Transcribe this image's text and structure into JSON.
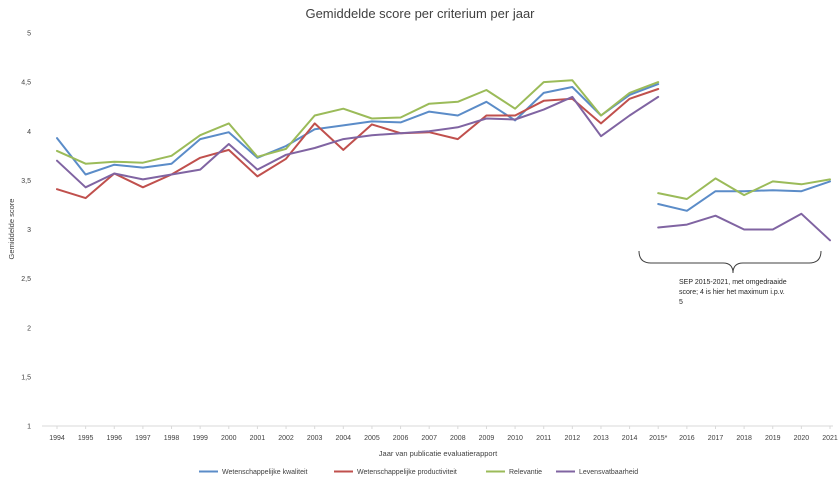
{
  "chart_data": {
    "type": "line",
    "title": "Gemiddelde score per criterium per jaar",
    "xlabel": "Jaar van publicatie evaluatierapport",
    "ylabel": "Gemiddelde score",
    "ylim": [
      1,
      5
    ],
    "yticks": [
      "1",
      "1,5",
      "2",
      "2,5",
      "3",
      "3,5",
      "4",
      "4,5",
      "5"
    ],
    "grid": false,
    "legend_position": "bottom",
    "categories": [
      "1994",
      "1995",
      "1996",
      "1997",
      "1998",
      "1999",
      "2000",
      "2001",
      "2002",
      "2003",
      "2004",
      "2005",
      "2006",
      "2007",
      "2008",
      "2009",
      "2010",
      "2011",
      "2012",
      "2013",
      "2014",
      "2015*",
      "2016",
      "2017",
      "2018",
      "2019",
      "2020",
      "2021"
    ],
    "series": [
      {
        "name": "Wetenschappelijke kwaliteit",
        "color": "#5b8cc8",
        "segments": [
          {
            "from": 0,
            "values": [
              3.93,
              3.56,
              3.66,
              3.63,
              3.67,
              3.92,
              3.99,
              3.73,
              3.85,
              4.02,
              4.06,
              4.1,
              4.09,
              4.2,
              4.16,
              4.3,
              4.11,
              4.39,
              4.45,
              4.16,
              4.37,
              4.48
            ]
          },
          {
            "from": 21,
            "values": [
              3.26,
              3.19,
              3.39,
              3.39,
              3.4,
              3.39,
              3.49
            ]
          }
        ]
      },
      {
        "name": "Wetenschappelijke productiviteit",
        "color": "#c0504d",
        "segments": [
          {
            "from": 0,
            "values": [
              3.41,
              3.32,
              3.57,
              3.43,
              3.56,
              3.73,
              3.81,
              3.54,
              3.72,
              4.08,
              3.81,
              4.07,
              3.98,
              3.99,
              3.92,
              4.16,
              4.16,
              4.31,
              4.33,
              4.08,
              4.33,
              4.43
            ]
          }
        ]
      },
      {
        "name": "Relevantie",
        "color": "#9bbb59",
        "segments": [
          {
            "from": 0,
            "values": [
              3.8,
              3.67,
              3.69,
              3.68,
              3.75,
              3.96,
              4.08,
              3.74,
              3.82,
              4.16,
              4.23,
              4.13,
              4.14,
              4.28,
              4.3,
              4.42,
              4.23,
              4.5,
              4.52,
              4.16,
              4.39,
              4.5
            ]
          },
          {
            "from": 21,
            "values": [
              3.37,
              3.31,
              3.52,
              3.35,
              3.49,
              3.46,
              3.51
            ]
          }
        ]
      },
      {
        "name": "Levensvatbaarheid",
        "color": "#8064a2",
        "segments": [
          {
            "from": 0,
            "values": [
              3.7,
              3.43,
              3.57,
              3.51,
              3.56,
              3.61,
              3.87,
              3.61,
              3.76,
              3.83,
              3.92,
              3.96,
              3.98,
              4.0,
              4.04,
              4.13,
              4.12,
              4.22,
              4.35,
              3.95,
              4.16,
              4.35
            ]
          },
          {
            "from": 21,
            "values": [
              3.02,
              3.05,
              3.14,
              3.0,
              3.0,
              3.16,
              2.89
            ]
          }
        ]
      }
    ],
    "annotation": {
      "lines": [
        "SEP 2015-2021, met omgedraaide",
        "score; 4 is hier het maximum i.p.v.",
        "5"
      ],
      "bracket_from": "2015*",
      "bracket_to": "2021"
    }
  }
}
